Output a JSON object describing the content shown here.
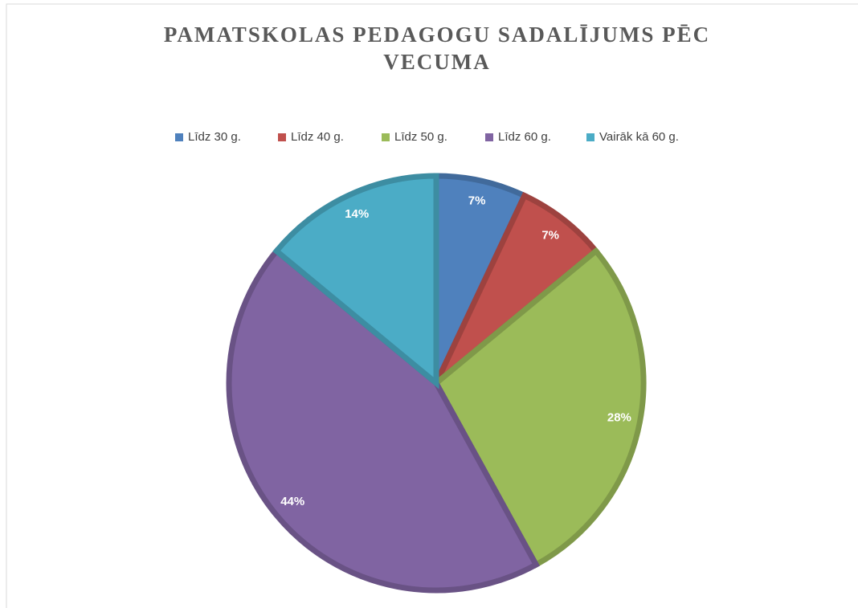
{
  "chart_data": {
    "type": "pie",
    "title": "PAMATSKOLAS PEDAGOGU SADALĪJUMS PĒC VECUMA",
    "categories": [
      "Līdz 30 g.",
      "Līdz 40 g.",
      "Līdz 50 g.",
      "Līdz 60 g.",
      "Vairāk kā 60 g."
    ],
    "values": [
      7,
      7,
      28,
      44,
      14
    ],
    "value_labels": [
      "7%",
      "7%",
      "28%",
      "44%",
      "14%"
    ],
    "colors": [
      "#4f81bd",
      "#c0504d",
      "#9bbb59",
      "#8064a2",
      "#4bacc6"
    ],
    "legend": "top"
  }
}
